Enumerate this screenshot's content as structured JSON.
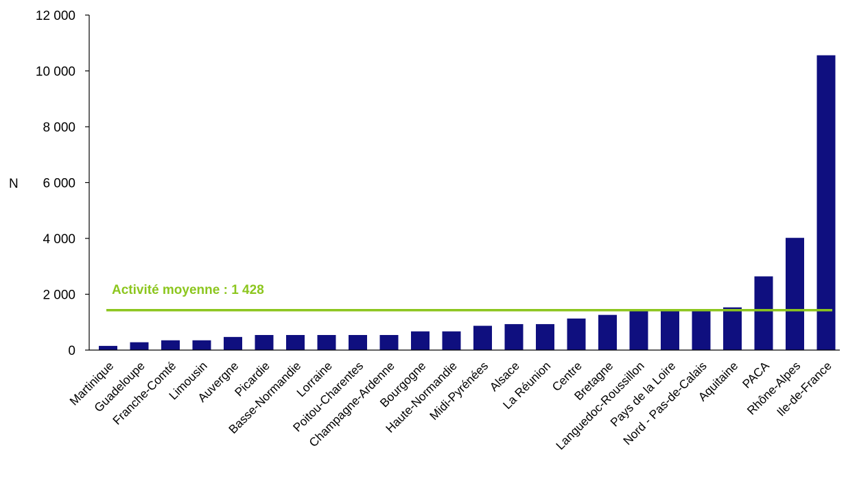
{
  "chart_data": {
    "type": "bar",
    "title": "",
    "xlabel": "",
    "ylabel": "N",
    "ylim": [
      0,
      12000
    ],
    "yticks": [
      0,
      2000,
      4000,
      6000,
      8000,
      10000,
      12000
    ],
    "ytick_labels": [
      "0",
      "2 000",
      "4 000",
      "6 000",
      "8 000",
      "10 000",
      "12 000"
    ],
    "grid": false,
    "legend": "none",
    "categories": [
      "Martinique",
      "Guadeloupe",
      "Franche-Comté",
      "Limousin",
      "Auvergne",
      "Picardie",
      "Basse-Normandie",
      "Lorraine",
      "Poitou-Charentes",
      "Champagne-Ardenne",
      "Bourgogne",
      "Haute-Normandie",
      "Midi-Pyrénées",
      "Alsace",
      "La Réunion",
      "Centre",
      "Bretagne",
      "Languedoc-Roussillon",
      "Pays de la Loire",
      "Nord - Pas-de-Calais",
      "Aquitaine",
      "PACA",
      "Rhône-Alpes",
      "Ile-de-France"
    ],
    "values": [
      150,
      280,
      350,
      350,
      470,
      540,
      540,
      540,
      540,
      540,
      670,
      670,
      870,
      930,
      930,
      1130,
      1260,
      1400,
      1430,
      1460,
      1530,
      2640,
      4020,
      10560
    ],
    "reference_line": {
      "value": 1428,
      "label": "Activité moyenne : 1 428"
    },
    "colors": {
      "bar": "#0f0f7f",
      "reference": "#8cc61e",
      "axis": "#000000"
    }
  }
}
